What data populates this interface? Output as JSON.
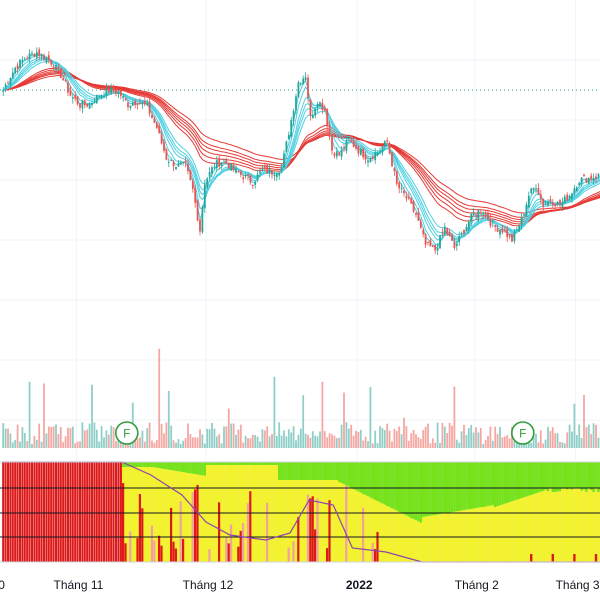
{
  "chart_data": {
    "type": "candlestick",
    "x_ticks": [
      "0",
      "Tháng 11",
      "Tháng 12",
      "2022",
      "Tháng 2",
      "Tháng 3"
    ],
    "x_tick_index": [
      -1,
      31,
      85,
      148,
      197,
      239
    ],
    "year_tick": "2022",
    "marker_label": "F",
    "marker_index": [
      32,
      197
    ],
    "reference_line_value": 90,
    "price_y_range": [
      40,
      280
    ],
    "colors": {
      "up": "#26a69a",
      "down": "#ef5350",
      "up_volume": "#8fcfc8",
      "down_volume": "#f4a7a3",
      "fast_ma": "#4dd0e1",
      "slow_ma": "#e53935",
      "marker": "#2e9e3a",
      "bg_green": "#76e21c",
      "bg_yellow": "#f2f22e",
      "bar_red": "#dd1a1a",
      "bar_light": "#f3a0a0",
      "osc_line": "#8e44ad"
    },
    "price_path": [
      [
        0,
        90
      ],
      [
        2,
        80
      ],
      [
        5,
        68
      ],
      [
        9,
        58
      ],
      [
        14,
        52
      ],
      [
        20,
        62
      ],
      [
        24,
        75
      ],
      [
        28,
        95
      ],
      [
        32,
        105
      ],
      [
        36,
        104
      ],
      [
        40,
        95
      ],
      [
        44,
        90
      ],
      [
        48,
        92
      ],
      [
        52,
        104
      ],
      [
        56,
        101
      ],
      [
        60,
        107
      ],
      [
        64,
        128
      ],
      [
        68,
        158
      ],
      [
        72,
        165
      ],
      [
        76,
        166
      ],
      [
        79,
        190
      ],
      [
        82,
        230
      ],
      [
        84,
        182
      ],
      [
        88,
        165
      ],
      [
        92,
        160
      ],
      [
        96,
        170
      ],
      [
        100,
        176
      ],
      [
        104,
        182
      ],
      [
        108,
        170
      ],
      [
        112,
        172
      ],
      [
        116,
        168
      ],
      [
        120,
        120
      ],
      [
        123,
        82
      ],
      [
        126,
        75
      ],
      [
        128,
        118
      ],
      [
        131,
        100
      ],
      [
        134,
        110
      ],
      [
        137,
        150
      ],
      [
        140,
        155
      ],
      [
        144,
        140
      ],
      [
        148,
        150
      ],
      [
        152,
        158
      ],
      [
        156,
        152
      ],
      [
        160,
        142
      ],
      [
        164,
        185
      ],
      [
        168,
        198
      ],
      [
        172,
        215
      ],
      [
        176,
        245
      ],
      [
        180,
        250
      ],
      [
        184,
        228
      ],
      [
        188,
        248
      ],
      [
        192,
        230
      ],
      [
        196,
        214
      ],
      [
        200,
        210
      ],
      [
        204,
        226
      ],
      [
        208,
        230
      ],
      [
        212,
        240
      ],
      [
        216,
        220
      ],
      [
        219,
        195
      ],
      [
        222,
        185
      ],
      [
        225,
        205
      ],
      [
        228,
        200
      ],
      [
        232,
        205
      ],
      [
        236,
        195
      ],
      [
        240,
        180
      ],
      [
        250,
        175
      ]
    ]
  }
}
